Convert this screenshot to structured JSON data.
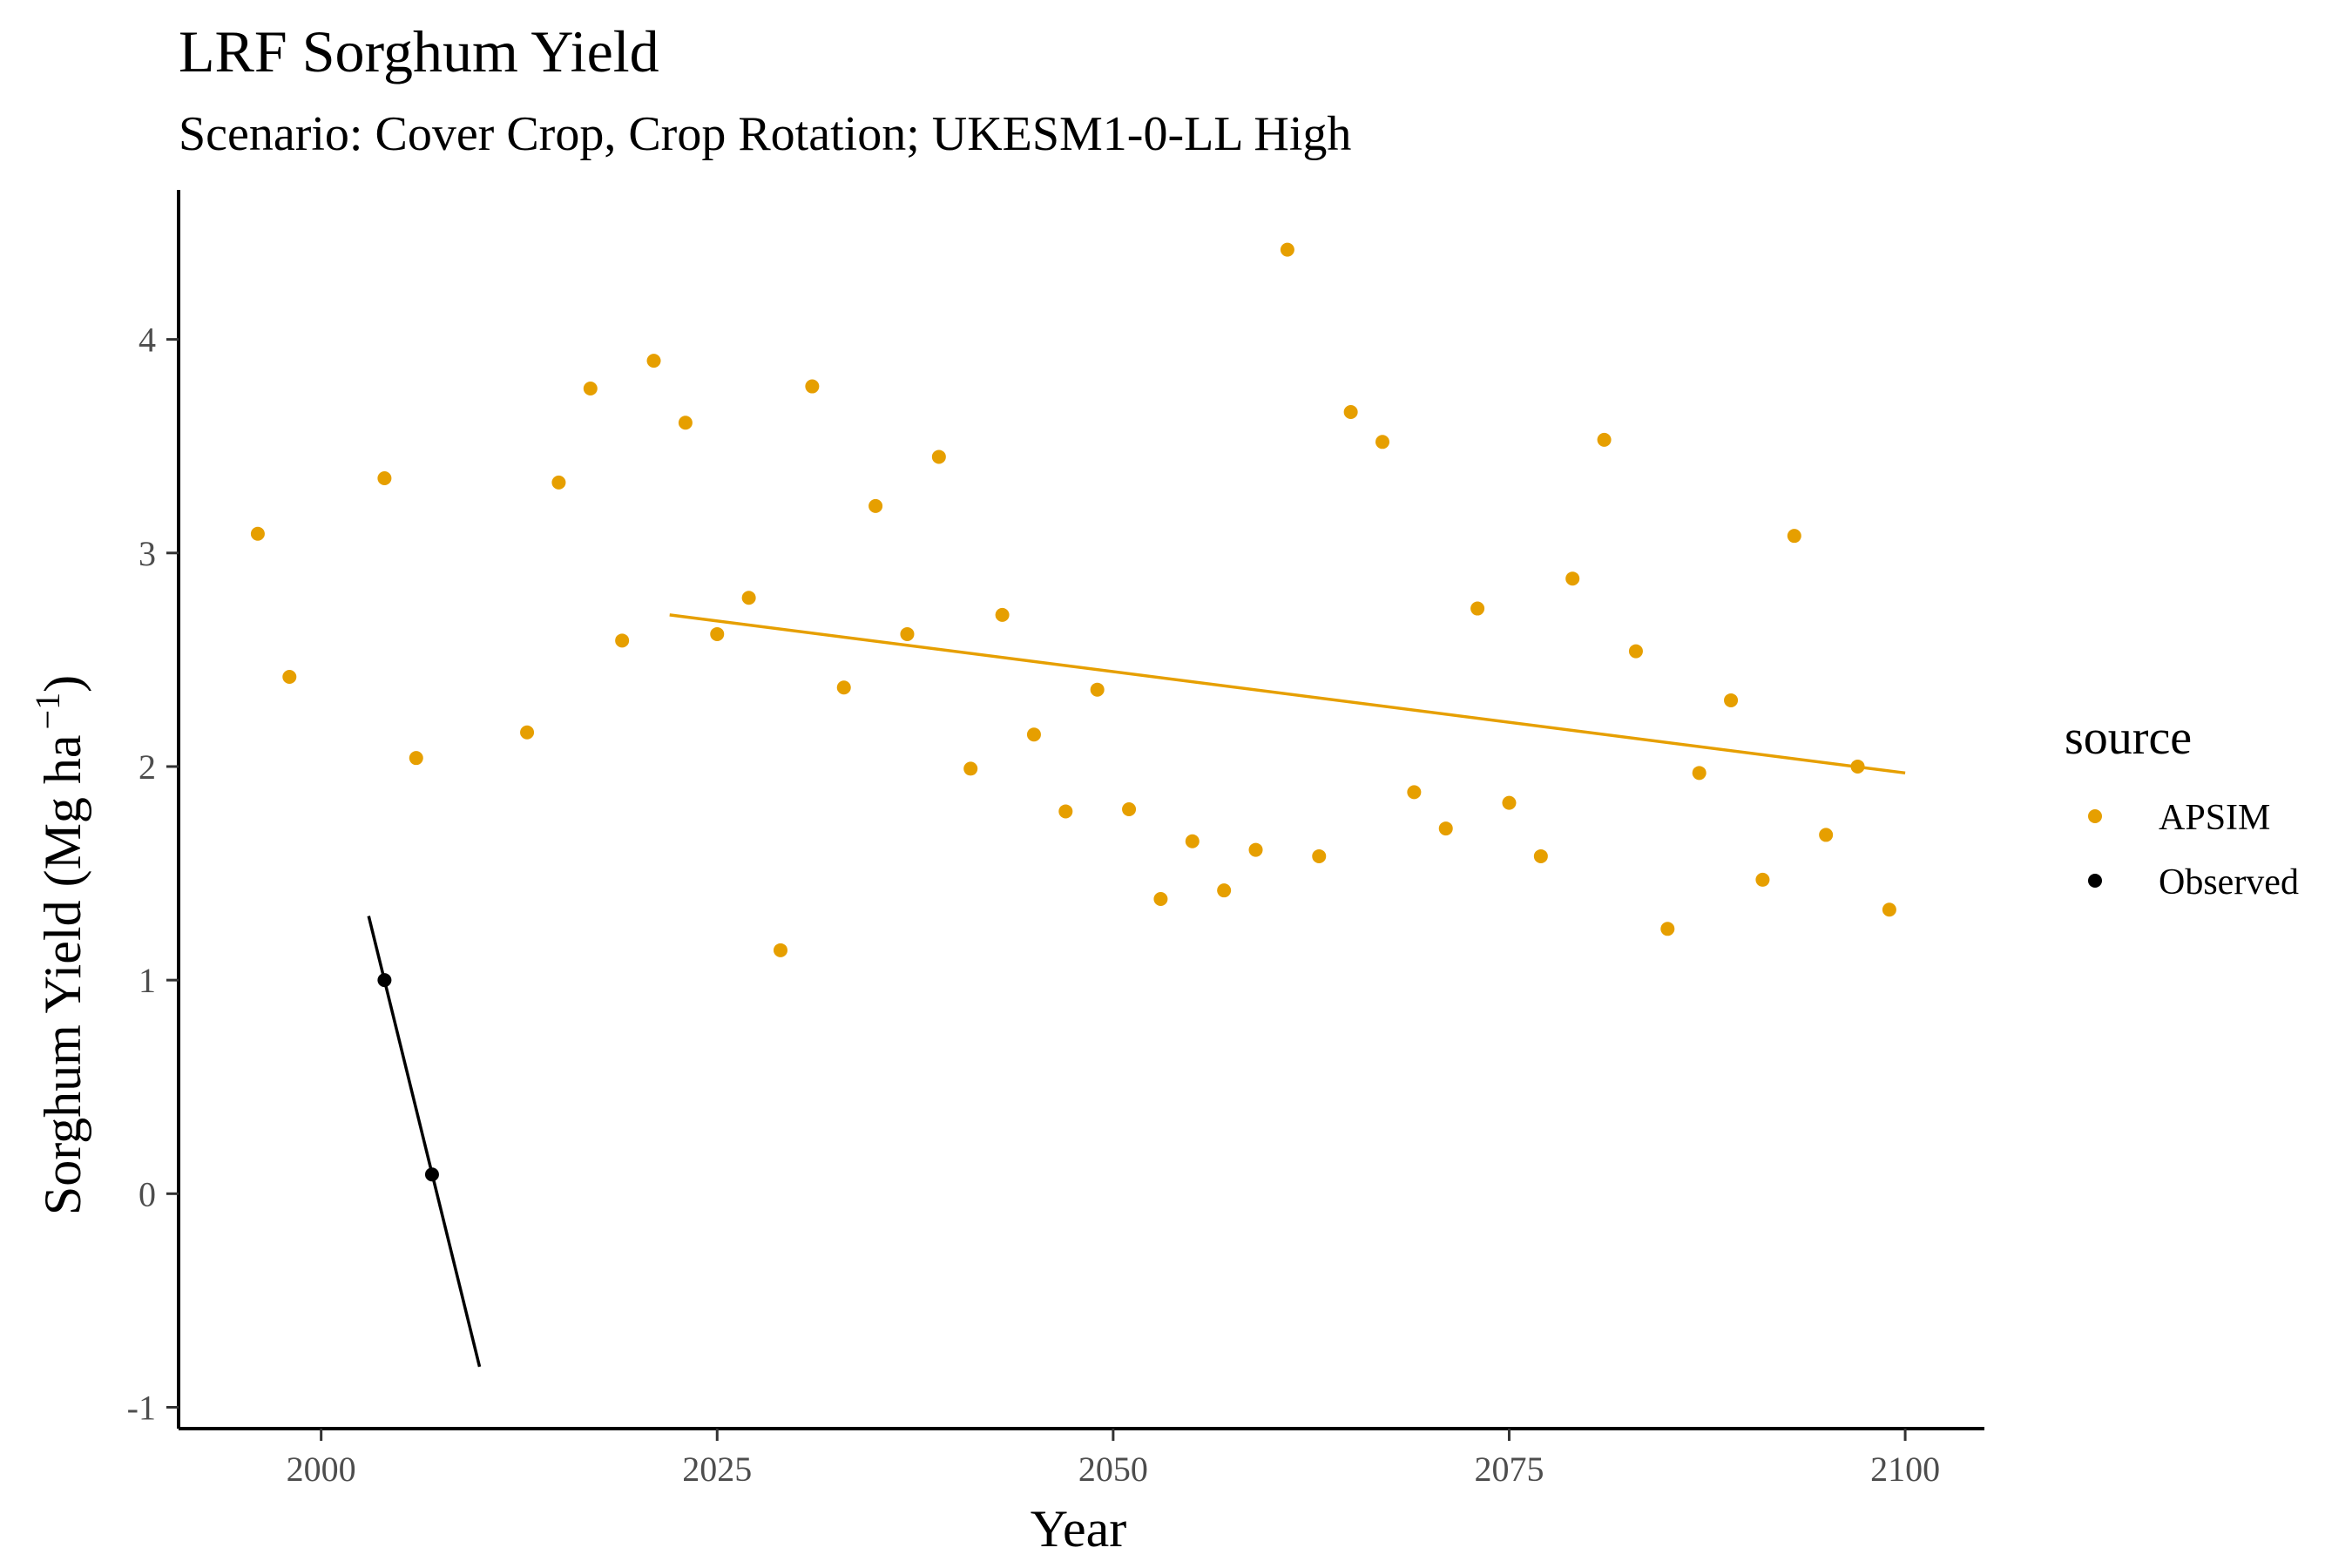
{
  "chart_data": {
    "type": "scatter",
    "title": "LRF Sorghum Yield",
    "subtitle": "Scenario: Cover Crop, Crop Rotation; UKESM1-0-LL High",
    "xlabel": "Year",
    "ylabel": "Sorghum Yield (Mg ha",
    "ylabel_unit_exponent": "−1",
    "ylabel_close": ")",
    "xlim": [
      1991,
      2105
    ],
    "ylim": [
      -1.1,
      4.7
    ],
    "x_ticks": [
      2000,
      2025,
      2050,
      2075,
      2100
    ],
    "y_ticks": [
      -1,
      0,
      1,
      2,
      3,
      4
    ],
    "x_tick_labels": [
      "2000",
      "2025",
      "2050",
      "2075",
      "2100"
    ],
    "y_tick_labels": [
      "-1",
      "0",
      "1",
      "2",
      "3",
      "4"
    ],
    "grid": false,
    "legend": {
      "title": "source",
      "position": "right"
    },
    "series": [
      {
        "name": "APSIM",
        "color": "#E69F00",
        "points": [
          [
            1996,
            3.09
          ],
          [
            1998,
            2.42
          ],
          [
            2004,
            3.35
          ],
          [
            2006,
            2.04
          ],
          [
            2013,
            2.16
          ],
          [
            2015,
            3.33
          ],
          [
            2017,
            3.77
          ],
          [
            2019,
            2.59
          ],
          [
            2021,
            3.9
          ],
          [
            2023,
            3.61
          ],
          [
            2025,
            2.62
          ],
          [
            2027,
            2.79
          ],
          [
            2029,
            1.14
          ],
          [
            2031,
            3.78
          ],
          [
            2033,
            2.37
          ],
          [
            2035,
            3.22
          ],
          [
            2037,
            2.62
          ],
          [
            2039,
            3.45
          ],
          [
            2041,
            1.99
          ],
          [
            2043,
            2.71
          ],
          [
            2045,
            2.15
          ],
          [
            2047,
            1.79
          ],
          [
            2049,
            2.36
          ],
          [
            2051,
            1.8
          ],
          [
            2053,
            1.38
          ],
          [
            2055,
            1.65
          ],
          [
            2057,
            1.42
          ],
          [
            2059,
            1.61
          ],
          [
            2061,
            4.42
          ],
          [
            2063,
            1.58
          ],
          [
            2065,
            3.66
          ],
          [
            2067,
            3.52
          ],
          [
            2069,
            1.88
          ],
          [
            2071,
            1.71
          ],
          [
            2073,
            2.74
          ],
          [
            2075,
            1.83
          ],
          [
            2077,
            1.58
          ],
          [
            2079,
            2.88
          ],
          [
            2081,
            3.53
          ],
          [
            2083,
            2.54
          ],
          [
            2085,
            1.24
          ],
          [
            2087,
            1.97
          ],
          [
            2089,
            2.31
          ],
          [
            2091,
            1.47
          ],
          [
            2093,
            3.08
          ],
          [
            2095,
            1.68
          ],
          [
            2097,
            2.0
          ],
          [
            2099,
            1.33
          ]
        ],
        "trend": [
          [
            2022,
            2.71
          ],
          [
            2100,
            1.97
          ]
        ]
      },
      {
        "name": "Observed",
        "color": "#000000",
        "points": [
          [
            2004,
            1.0
          ],
          [
            2007,
            0.09
          ]
        ],
        "trend": [
          [
            2003,
            1.3
          ],
          [
            2010,
            -0.81
          ]
        ]
      }
    ]
  }
}
